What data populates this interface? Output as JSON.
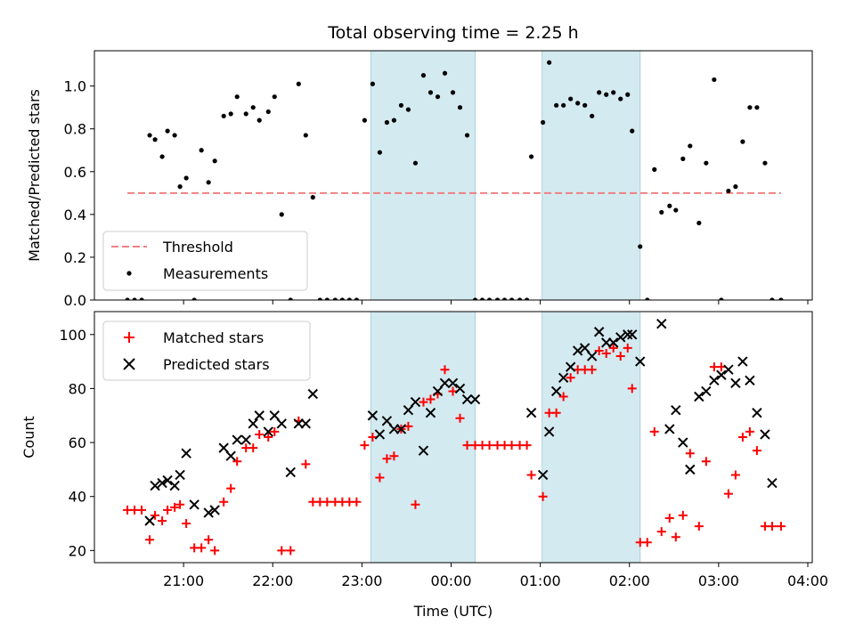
{
  "colors": {
    "band": "#d3eaf0",
    "band_edge": "#a9d2dd",
    "threshold": "#f08080",
    "matched": "#ff0000",
    "predicted": "#000000",
    "measure": "#000000"
  },
  "chart_data": [
    {
      "type": "scatter",
      "title": "Total observing time = 2.25 h",
      "ylabel": "Matched/Predicted stars",
      "xlabel": "",
      "x_unit": "hours since 20:00 UTC (axis printed as clock time)",
      "xlim": [
        0.0,
        8.05
      ],
      "ylim": [
        0,
        1.165
      ],
      "yticks": [
        0.0,
        0.2,
        0.4,
        0.6,
        0.8,
        1.0
      ],
      "ytick_labels": [
        "0.0",
        "0.2",
        "0.4",
        "0.6",
        "0.8",
        "1.0"
      ],
      "grid": false,
      "legend": "lower-left",
      "shaded_intervals": [
        [
          3.1,
          4.27
        ],
        [
          5.02,
          6.12
        ]
      ],
      "threshold": {
        "name": "Threshold",
        "value": 0.5,
        "x_range": [
          0.37,
          7.7
        ]
      },
      "series": [
        {
          "name": "Measurements",
          "x": [
            0.37,
            0.45,
            0.53,
            0.62,
            0.68,
            0.76,
            0.82,
            0.9,
            0.96,
            1.03,
            1.12,
            1.2,
            1.28,
            1.35,
            1.45,
            1.53,
            1.6,
            1.7,
            1.78,
            1.85,
            1.95,
            2.02,
            2.1,
            2.2,
            2.29,
            2.37,
            2.45,
            2.53,
            2.61,
            2.7,
            2.78,
            2.86,
            2.94,
            3.03,
            3.12,
            3.2,
            3.28,
            3.36,
            3.44,
            3.52,
            3.6,
            3.69,
            3.77,
            3.85,
            3.93,
            4.02,
            4.1,
            4.18,
            4.27,
            4.35,
            4.43,
            4.52,
            4.6,
            4.68,
            4.77,
            4.85,
            4.9,
            5.03,
            5.1,
            5.18,
            5.26,
            5.34,
            5.42,
            5.5,
            5.58,
            5.66,
            5.74,
            5.82,
            5.9,
            5.98,
            6.03,
            6.12,
            6.2,
            6.28,
            6.36,
            6.45,
            6.52,
            6.6,
            6.68,
            6.78,
            6.86,
            6.95,
            7.03,
            7.11,
            7.19,
            7.27,
            7.35,
            7.43,
            7.52,
            7.6,
            7.7
          ],
          "y": [
            0.0,
            0.0,
            0.0,
            0.77,
            0.75,
            0.67,
            0.79,
            0.77,
            0.53,
            0.57,
            0.0,
            0.7,
            0.55,
            0.65,
            0.86,
            0.87,
            0.95,
            0.87,
            0.9,
            0.84,
            0.88,
            0.95,
            0.4,
            0.0,
            1.01,
            0.77,
            0.48,
            0.0,
            0.0,
            0.0,
            0.0,
            0.0,
            0.0,
            0.84,
            1.01,
            0.69,
            0.83,
            0.84,
            0.91,
            0.89,
            0.64,
            1.05,
            0.97,
            0.95,
            1.06,
            0.97,
            0.9,
            0.77,
            0.0,
            0.0,
            0.0,
            0.0,
            0.0,
            0.0,
            0.0,
            0.0,
            0.67,
            0.83,
            1.11,
            0.91,
            0.91,
            0.94,
            0.92,
            0.91,
            0.86,
            0.97,
            0.96,
            0.97,
            0.94,
            0.96,
            0.79,
            0.25,
            0.0,
            0.61,
            0.41,
            0.44,
            0.42,
            0.66,
            0.72,
            0.36,
            0.64,
            1.03,
            0.0,
            0.51,
            0.53,
            0.74,
            0.9,
            0.9,
            0.64,
            0.0,
            0.0
          ]
        }
      ]
    },
    {
      "type": "scatter",
      "title": "",
      "ylabel": "Count",
      "xlabel": "Time (UTC)",
      "x_unit": "hours since 20:00 UTC (axis printed as clock time)",
      "xlim": [
        0.0,
        8.05
      ],
      "ylim": [
        15.5,
        108.5
      ],
      "yticks": [
        20,
        40,
        60,
        80,
        100
      ],
      "ytick_labels": [
        "20",
        "40",
        "60",
        "80",
        "100"
      ],
      "xticks": [
        1,
        2,
        3,
        4,
        5,
        6,
        7,
        8
      ],
      "xtick_labels": [
        "21:00",
        "22:00",
        "23:00",
        "00:00",
        "01:00",
        "02:00",
        "03:00",
        "04:00"
      ],
      "grid": false,
      "legend": "upper-left",
      "shaded_intervals": [
        [
          3.1,
          4.27
        ],
        [
          5.02,
          6.12
        ]
      ],
      "series": [
        {
          "name": "Matched stars",
          "marker": "+",
          "x": [
            0.37,
            0.45,
            0.53,
            0.62,
            0.68,
            0.76,
            0.82,
            0.9,
            0.96,
            1.03,
            1.12,
            1.2,
            1.28,
            1.35,
            1.45,
            1.53,
            1.6,
            1.7,
            1.78,
            1.85,
            1.95,
            2.02,
            2.1,
            2.2,
            2.29,
            2.37,
            2.45,
            2.53,
            2.61,
            2.7,
            2.78,
            2.86,
            2.94,
            3.03,
            3.12,
            3.2,
            3.28,
            3.36,
            3.44,
            3.52,
            3.6,
            3.69,
            3.77,
            3.85,
            3.93,
            4.02,
            4.1,
            4.18,
            4.27,
            4.35,
            4.43,
            4.52,
            4.6,
            4.68,
            4.77,
            4.85,
            4.9,
            5.03,
            5.1,
            5.18,
            5.26,
            5.34,
            5.42,
            5.5,
            5.58,
            5.66,
            5.74,
            5.82,
            5.9,
            5.98,
            6.03,
            6.12,
            6.2,
            6.28,
            6.36,
            6.45,
            6.52,
            6.6,
            6.68,
            6.78,
            6.86,
            6.95,
            7.03,
            7.11,
            7.19,
            7.27,
            7.35,
            7.43,
            7.52,
            7.6,
            7.7
          ],
          "y": [
            35,
            35,
            35,
            24,
            33,
            31,
            35,
            36,
            37,
            30,
            21,
            21,
            24,
            20,
            38,
            43,
            53,
            58,
            58,
            63,
            62,
            64,
            20,
            20,
            68,
            52,
            38,
            38,
            38,
            38,
            38,
            38,
            38,
            59,
            62,
            47,
            54,
            55,
            65,
            66,
            37,
            75,
            76,
            78,
            87,
            79,
            69,
            59,
            59,
            59,
            59,
            59,
            59,
            59,
            59,
            59,
            48,
            40,
            71,
            71,
            77,
            84,
            87,
            87,
            87,
            94,
            93,
            95,
            92,
            95,
            80,
            23,
            23,
            64,
            27,
            32,
            25,
            33,
            56,
            29,
            53,
            88,
            88,
            41,
            48,
            62,
            64,
            57,
            29,
            29,
            29
          ]
        },
        {
          "name": "Predicted stars",
          "marker": "x",
          "x": [
            0.62,
            0.68,
            0.76,
            0.82,
            0.9,
            0.96,
            1.03,
            1.12,
            1.28,
            1.35,
            1.45,
            1.53,
            1.6,
            1.7,
            1.78,
            1.85,
            1.95,
            2.02,
            2.1,
            2.2,
            2.29,
            2.37,
            2.45,
            3.12,
            3.2,
            3.28,
            3.36,
            3.44,
            3.52,
            3.6,
            3.69,
            3.77,
            3.85,
            3.93,
            4.02,
            4.1,
            4.18,
            4.27,
            4.9,
            5.03,
            5.1,
            5.18,
            5.26,
            5.34,
            5.42,
            5.5,
            5.58,
            5.66,
            5.74,
            5.82,
            5.9,
            5.98,
            6.03,
            6.12,
            6.36,
            6.45,
            6.52,
            6.6,
            6.68,
            6.78,
            6.86,
            6.95,
            7.03,
            7.11,
            7.19,
            7.27,
            7.35,
            7.43,
            7.52,
            7.6
          ],
          "y": [
            31,
            44,
            45,
            46,
            44,
            48,
            56,
            37,
            34,
            35,
            58,
            55,
            61,
            61,
            67,
            70,
            64,
            70,
            67,
            49,
            67,
            67,
            78,
            70,
            63,
            68,
            65,
            65,
            72,
            75,
            57,
            71,
            79,
            82,
            82,
            80,
            76,
            76,
            71,
            48,
            64,
            79,
            84,
            88,
            94,
            95,
            92,
            101,
            97,
            97,
            99,
            100,
            100,
            90,
            104,
            65,
            72,
            60,
            50,
            77,
            79,
            83,
            85,
            87,
            82,
            90,
            83,
            71,
            63,
            45
          ]
        }
      ]
    }
  ]
}
